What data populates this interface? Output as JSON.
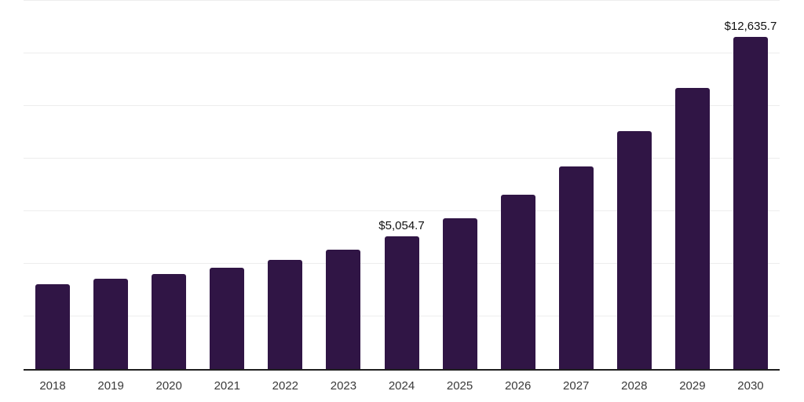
{
  "chart_data": {
    "type": "bar",
    "title": "",
    "xlabel": "",
    "ylabel": "",
    "categories": [
      "2018",
      "2019",
      "2020",
      "2021",
      "2022",
      "2023",
      "2024",
      "2025",
      "2026",
      "2027",
      "2028",
      "2029",
      "2030"
    ],
    "values": [
      3240,
      3420,
      3600,
      3840,
      4160,
      4540,
      5054.7,
      5740,
      6620,
      7700,
      9040,
      10690,
      12635.7
    ],
    "bar_labels": [
      null,
      null,
      null,
      null,
      null,
      null,
      "$5,054.7",
      null,
      null,
      null,
      null,
      null,
      "$12,635.7"
    ],
    "ylim": [
      0,
      14030
    ],
    "gridline_interval": 2000,
    "grid": true,
    "legend_position": "none",
    "colors": {
      "bar": "#301545",
      "gridline": "#ededed",
      "axis_line": "#1f1f1f",
      "tick_label": "#3a3a3a",
      "data_label": "#111111",
      "background": "#ffffff"
    }
  }
}
